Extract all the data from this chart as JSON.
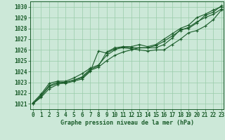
{
  "title": "Graphe pression niveau de la mer (hPa)",
  "hours": [
    0,
    1,
    2,
    3,
    4,
    5,
    6,
    7,
    8,
    9,
    10,
    11,
    12,
    13,
    14,
    15,
    16,
    17,
    18,
    19,
    20,
    21,
    22,
    23
  ],
  "ylim": [
    1020.5,
    1030.5
  ],
  "xlim": [
    -0.3,
    23.3
  ],
  "yticks": [
    1021,
    1022,
    1023,
    1024,
    1025,
    1026,
    1027,
    1028,
    1029,
    1030
  ],
  "bg_color": "#cce8d8",
  "grid_color": "#99ccaa",
  "line_color": "#1a5c2a",
  "lines": [
    [
      1021.0,
      1021.8,
      1022.7,
      1023.0,
      1023.0,
      1023.2,
      1023.5,
      1024.2,
      1024.5,
      1025.8,
      1026.2,
      1026.3,
      1026.2,
      1026.2,
      1026.2,
      1026.2,
      1026.5,
      1027.1,
      1027.9,
      1028.0,
      1028.5,
      1029.2,
      1029.5,
      1030.1
    ],
    [
      1021.1,
      1021.9,
      1022.9,
      1023.1,
      1023.1,
      1023.4,
      1023.8,
      1024.3,
      1024.6,
      1025.5,
      1026.0,
      1026.3,
      1026.3,
      1026.5,
      1026.3,
      1026.5,
      1027.0,
      1027.5,
      1028.0,
      1028.3,
      1029.0,
      1029.3,
      1029.7,
      1030.0
    ],
    [
      1021.0,
      1021.7,
      1022.6,
      1022.9,
      1022.9,
      1023.1,
      1023.3,
      1024.0,
      1025.9,
      1025.7,
      1026.1,
      1026.2,
      1026.1,
      1026.0,
      1025.9,
      1026.0,
      1026.0,
      1026.5,
      1027.0,
      1027.6,
      1027.8,
      1028.2,
      1028.8,
      1029.7
    ],
    [
      1021.0,
      1021.6,
      1022.4,
      1022.8,
      1023.0,
      1023.2,
      1023.4,
      1024.1,
      1024.4,
      1025.0,
      1025.5,
      1025.8,
      1026.0,
      1026.2,
      1026.2,
      1026.4,
      1026.8,
      1027.3,
      1027.8,
      1028.1,
      1028.6,
      1029.0,
      1029.3,
      1029.8
    ]
  ],
  "tick_fontsize": 5.5,
  "label_fontsize": 6.0,
  "line_width": 0.8,
  "marker_size": 3.5
}
